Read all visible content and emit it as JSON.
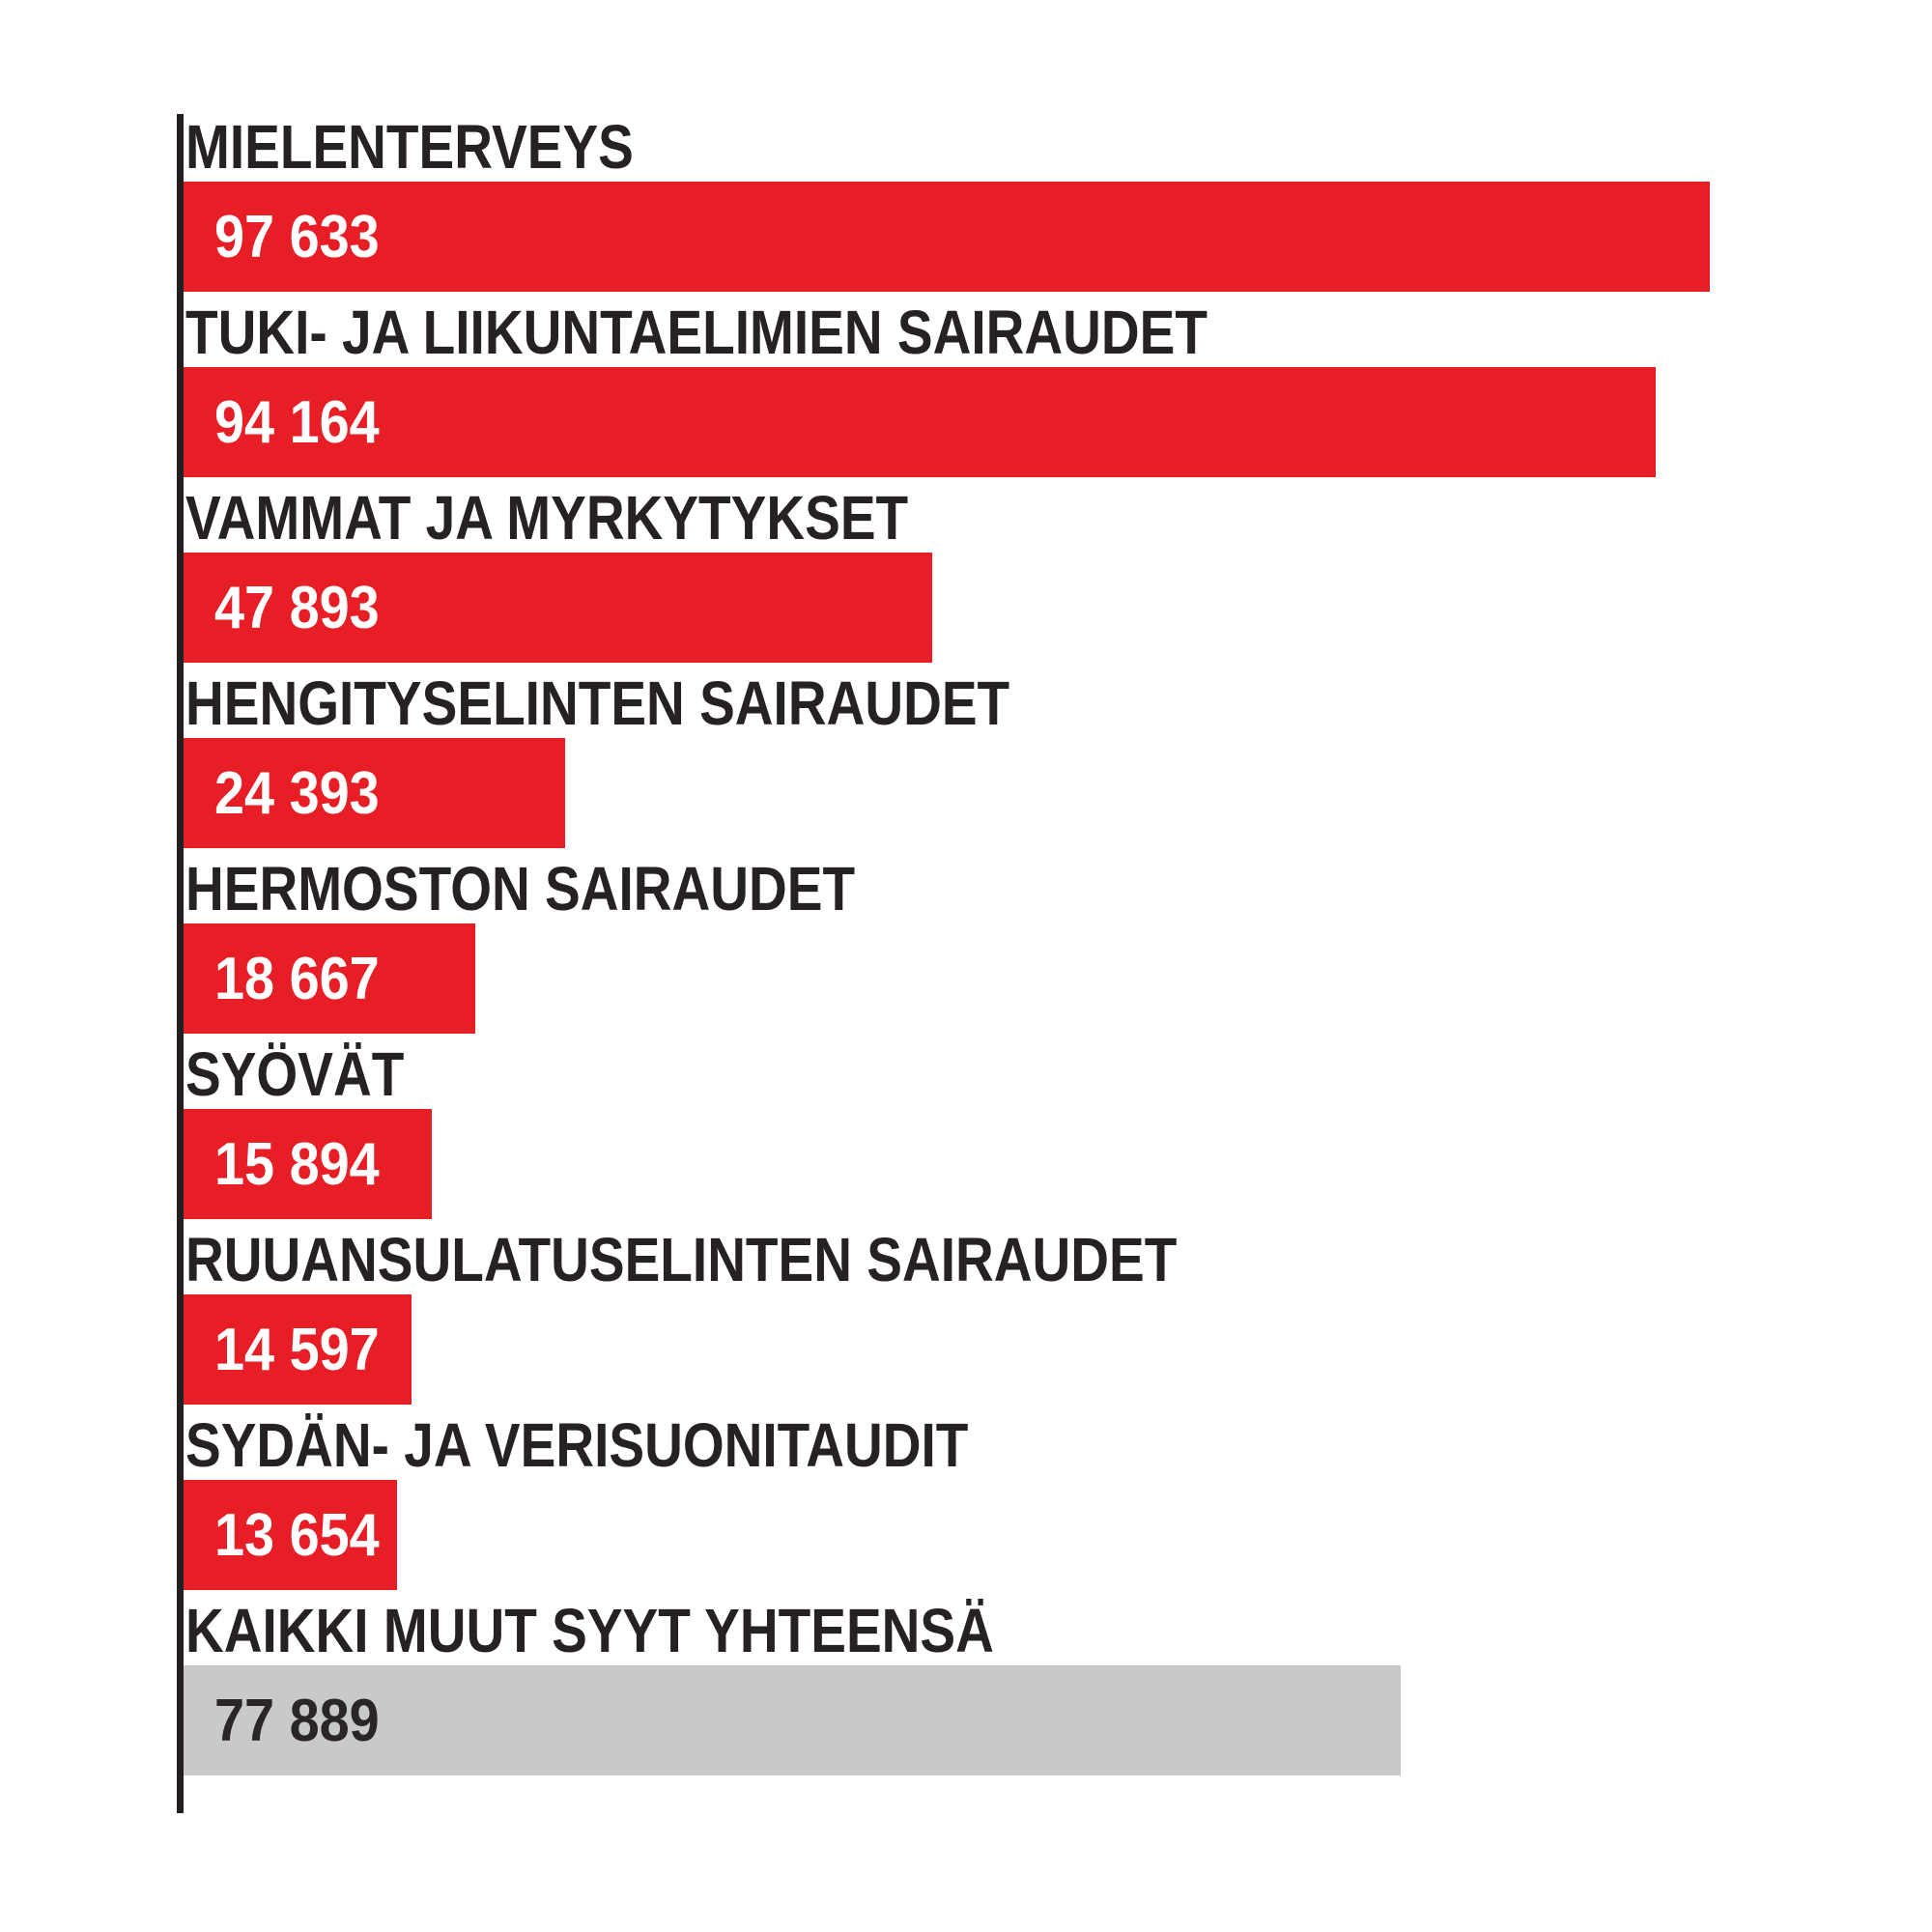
{
  "chart_data": {
    "type": "bar",
    "orientation": "horizontal",
    "title": "",
    "xlabel": "",
    "ylabel": "",
    "grid": false,
    "legend": false,
    "xlim": [
      0,
      100000
    ],
    "categories": [
      "MIELENTERVEYS",
      "TUKI- JA LIIKUNTAELIMIEN SAIRAUDET",
      "VAMMAT JA MYRKYTYKSET",
      "HENGITYSELINTEN SAIRAUDET",
      "HERMOSTON SAIRAUDET",
      "SYÖVÄT",
      "RUUANSULATUSELINTEN SAIRAUDET",
      "SYDÄN- JA VERISUONITAUDIT",
      "KAIKKI MUUT SYYT YHTEENSÄ"
    ],
    "values": [
      97633,
      94164,
      47893,
      24393,
      18667,
      15894,
      14597,
      13654,
      77889
    ],
    "rows": [
      {
        "label": "MIELENTERVEYS",
        "value": 97633,
        "value_label": "97 633",
        "color_role": "red"
      },
      {
        "label": "TUKI- JA LIIKUNTAELIMIEN SAIRAUDET",
        "value": 94164,
        "value_label": "94 164",
        "color_role": "red"
      },
      {
        "label": "VAMMAT JA MYRKYTYKSET",
        "value": 47893,
        "value_label": "47 893",
        "color_role": "red"
      },
      {
        "label": "HENGITYSELINTEN SAIRAUDET",
        "value": 24393,
        "value_label": "24 393",
        "color_role": "red"
      },
      {
        "label": "HERMOSTON SAIRAUDET",
        "value": 18667,
        "value_label": "18 667",
        "color_role": "red"
      },
      {
        "label": "SYÖVÄT",
        "value": 15894,
        "value_label": "15 894",
        "color_role": "red"
      },
      {
        "label": "RUUANSULATUSELINTEN SAIRAUDET",
        "value": 14597,
        "value_label": "14 597",
        "color_role": "red"
      },
      {
        "label": "SYDÄN- JA VERISUONITAUDIT",
        "value": 13654,
        "value_label": "13 654",
        "color_role": "red"
      },
      {
        "label": "KAIKKI MUUT SYYT YHTEENSÄ",
        "value": 77889,
        "value_label": "77 889",
        "color_role": "gray"
      }
    ]
  },
  "styles": {
    "bar_red": "#e81e26",
    "bar_gray": "#c8c9ca",
    "label_text": "#262223",
    "value_text_on_red": "#ffffff",
    "value_text_on_gray": "#2a2627",
    "axis_color": "#231f20",
    "background": "#ffffff"
  }
}
